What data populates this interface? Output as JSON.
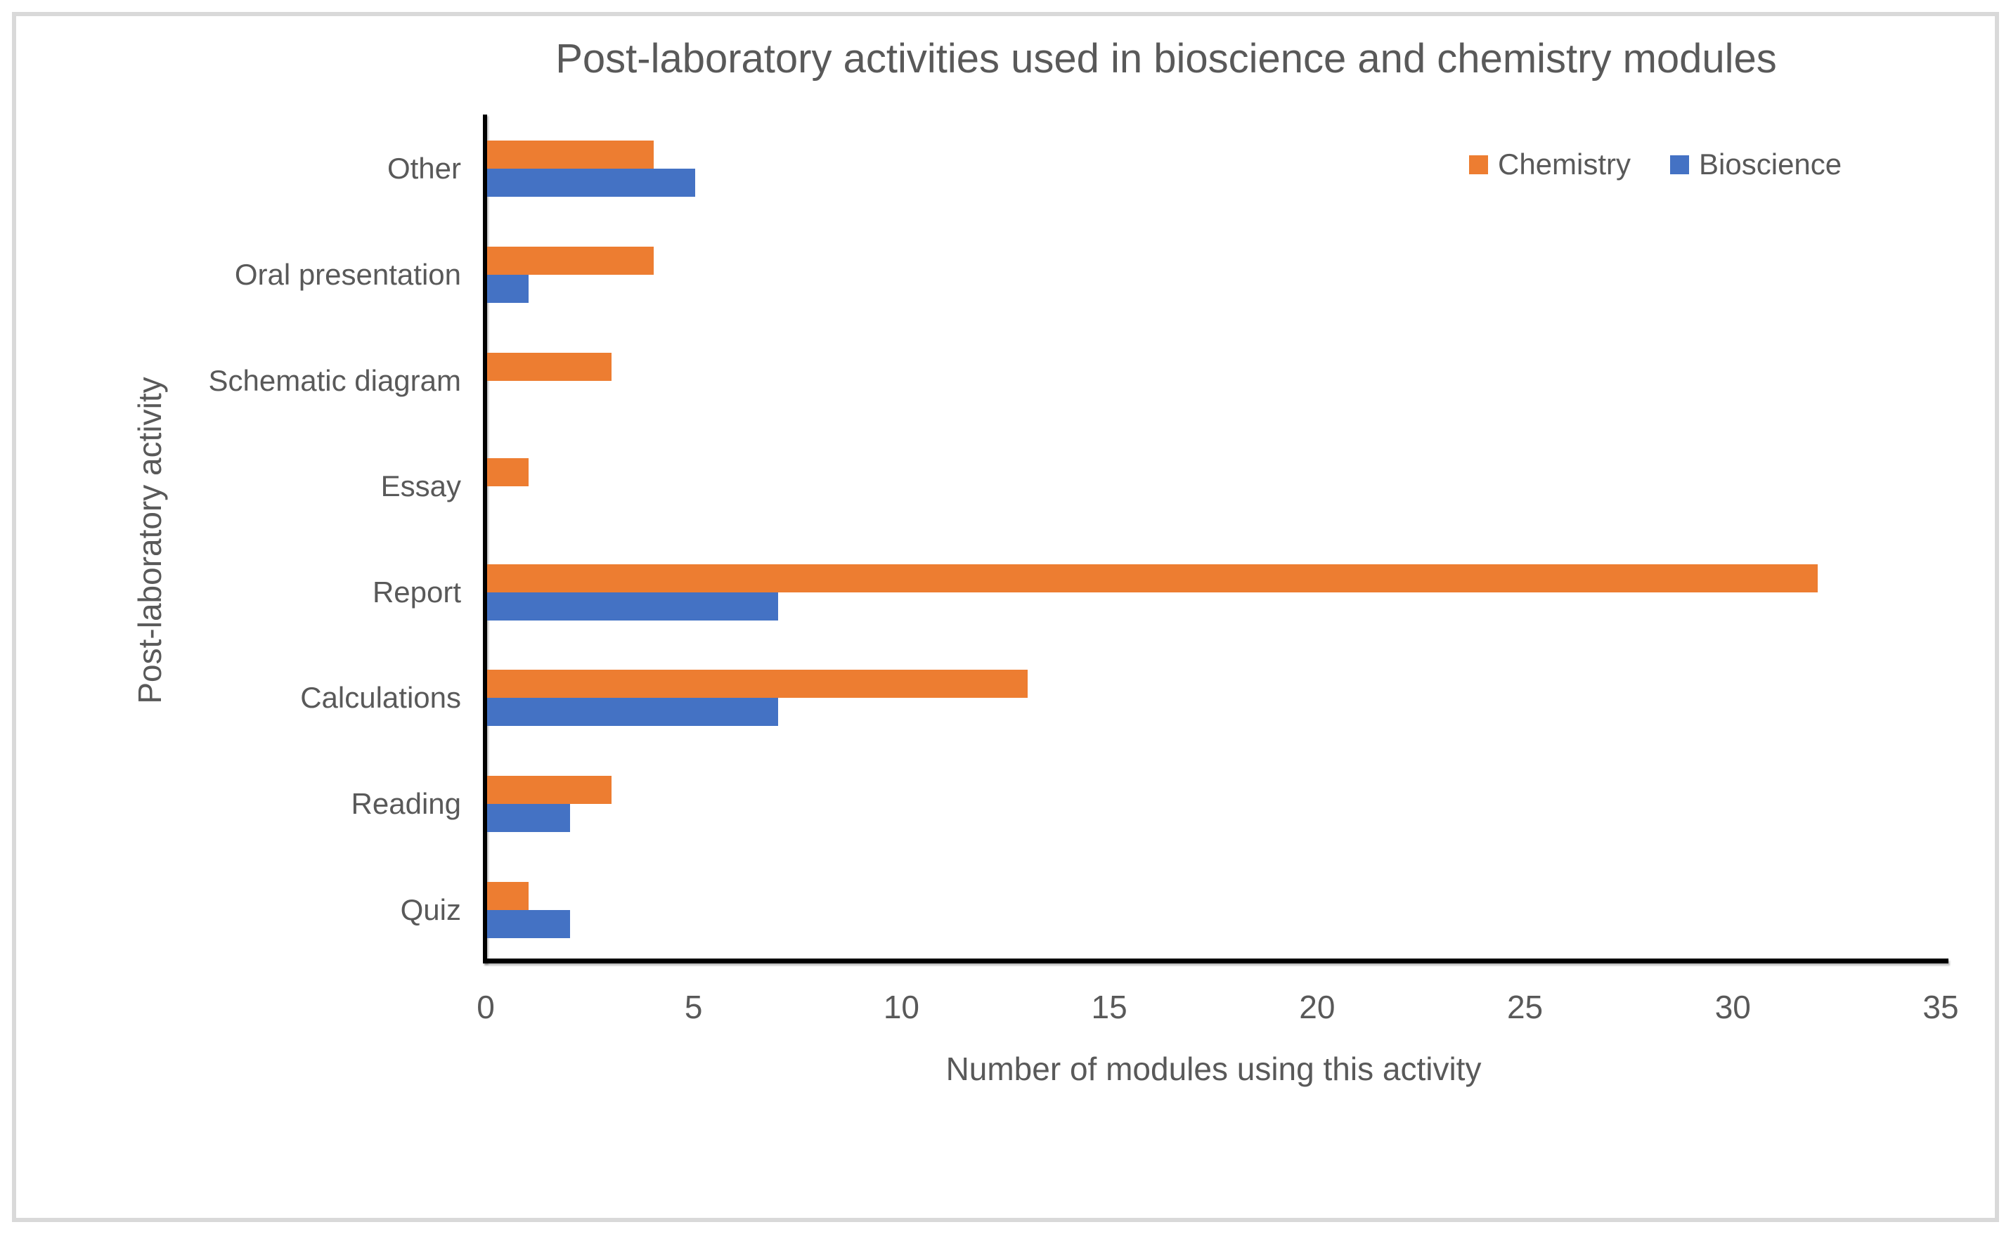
{
  "figure": {
    "border_color": "#D9D9D9",
    "background_color": "#FFFFFF",
    "text_color": "#595959",
    "axis_color": "#000000"
  },
  "chart_data": {
    "type": "bar",
    "orientation": "horizontal",
    "title": "Post-laboratory activities used in bioscience and chemistry modules",
    "xlabel": "Number of modules using this activity",
    "ylabel": "Post-laboratory activity",
    "categories": [
      "Other",
      "Oral presentation",
      "Schematic diagram",
      "Essay",
      "Report",
      "Calculations",
      "Reading",
      "Quiz"
    ],
    "series": [
      {
        "name": "Chemistry",
        "color": "#ED7D31",
        "values": [
          4,
          4,
          3,
          1,
          32,
          13,
          3,
          1
        ]
      },
      {
        "name": "Bioscience",
        "color": "#4472C4",
        "values": [
          5,
          1,
          0,
          0,
          7,
          7,
          2,
          2
        ]
      }
    ],
    "xlim": [
      0,
      35
    ],
    "xticks": [
      0,
      5,
      10,
      15,
      20,
      25,
      30,
      35
    ],
    "grid": false,
    "legend_position": "top-right"
  }
}
